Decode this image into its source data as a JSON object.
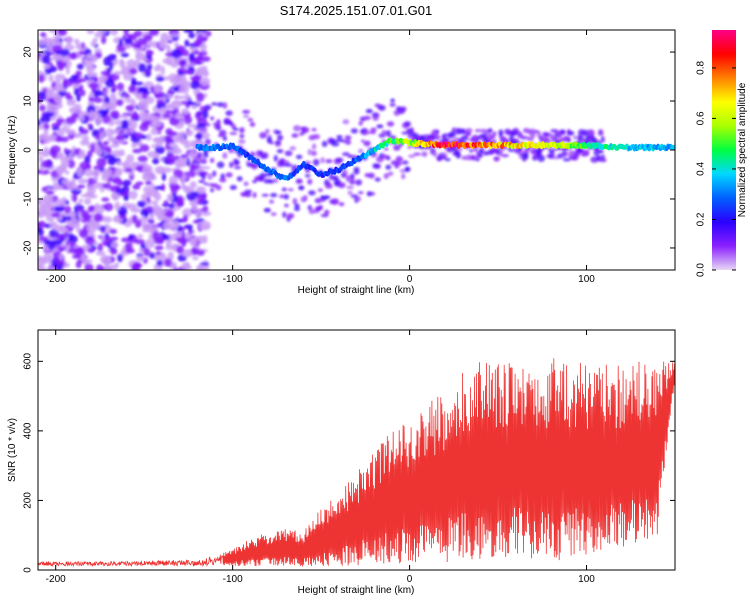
{
  "title": "S174.2025.151.07.01.G01",
  "chart_data": [
    {
      "type": "heatmap",
      "xlabel": "Height of straight line (km)",
      "ylabel": "Frequency (Hz)",
      "xlim": [
        -210,
        150
      ],
      "ylim": [
        -24.5,
        24.5
      ],
      "xticks": [
        -200,
        -100,
        0,
        100
      ],
      "yticks": [
        -20,
        -10,
        0,
        10,
        20
      ],
      "grid": false,
      "colorbar": {
        "label": "Normalized spectral amplitude",
        "range": [
          0,
          0.95
        ],
        "ticks": [
          0.0,
          0.2,
          0.4,
          0.6,
          0.8
        ],
        "tick_labels": [
          "0.0",
          "0.2",
          "0.4",
          "0.6",
          "0.8"
        ],
        "colors": [
          "#e8d8f4",
          "#8a20ff",
          "#2a00ff",
          "#0060ff",
          "#00d8ff",
          "#00ff40",
          "#a8ff00",
          "#ffff00",
          "#ff8000",
          "#ff0000",
          "#ff0088"
        ]
      },
      "ridge": {
        "x": [
          -120,
          -110,
          -100,
          -90,
          -80,
          -70,
          -60,
          -50,
          -40,
          -30,
          -20,
          -10,
          0,
          20,
          40,
          60,
          80,
          100,
          120,
          150
        ],
        "y": [
          0.5,
          0.5,
          0.8,
          -1.5,
          -4,
          -6,
          -3,
          -5,
          -4,
          -2,
          0,
          2,
          1.5,
          1,
          1,
          1,
          1,
          1,
          0.5,
          0.5
        ],
        "amplitude": [
          0.3,
          0.3,
          0.3,
          0.25,
          0.3,
          0.3,
          0.25,
          0.25,
          0.25,
          0.28,
          0.4,
          0.5,
          0.6,
          0.9,
          0.85,
          0.7,
          0.65,
          0.5,
          0.4,
          0.35
        ]
      },
      "noise_region_x": [
        -210,
        -115
      ]
    },
    {
      "type": "line",
      "xlabel": "Height of straight line (km)",
      "ylabel": "SNR (10 * v/v)",
      "xlim": [
        -210,
        150
      ],
      "ylim": [
        0,
        690
      ],
      "xticks": [
        -200,
        -100,
        0,
        100
      ],
      "yticks": [
        0,
        200,
        400,
        600
      ],
      "color": "#ee3333",
      "grid": false,
      "envelope": {
        "x": [
          -210,
          -160,
          -120,
          -110,
          -100,
          -90,
          -80,
          -70,
          -60,
          -50,
          -40,
          -30,
          -20,
          -10,
          0,
          10,
          20,
          30,
          40,
          50,
          60,
          70,
          80,
          90,
          100,
          110,
          120,
          130,
          140,
          150
        ],
        "y": [
          25,
          25,
          30,
          40,
          60,
          90,
          110,
          120,
          110,
          180,
          220,
          280,
          350,
          400,
          430,
          480,
          520,
          580,
          600,
          600,
          600,
          600,
          610,
          610,
          600,
          600,
          590,
          600,
          600,
          600
        ]
      },
      "baseline": {
        "x": [
          -210,
          -100,
          -80,
          -40,
          -20,
          0,
          20,
          40,
          60,
          80,
          100,
          120,
          140,
          150
        ],
        "y": [
          12,
          12,
          10,
          10,
          15,
          20,
          20,
          30,
          40,
          20,
          40,
          60,
          100,
          550
        ]
      }
    }
  ]
}
